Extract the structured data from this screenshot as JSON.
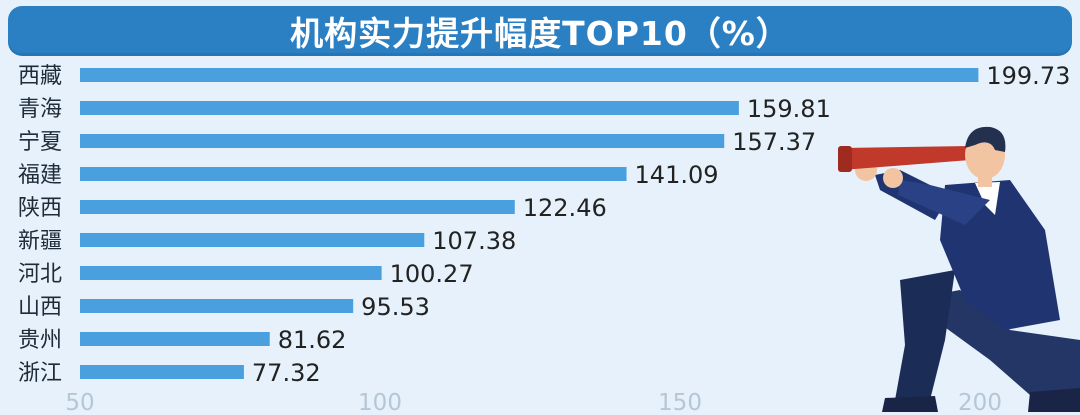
{
  "chart_data": {
    "type": "bar",
    "orientation": "horizontal",
    "title": "机构实力提升幅度TOP10（%）",
    "categories": [
      "西藏",
      "青海",
      "宁夏",
      "福建",
      "陕西",
      "新疆",
      "河北",
      "山西",
      "贵州",
      "浙江"
    ],
    "values": [
      199.73,
      159.81,
      157.37,
      141.09,
      122.46,
      107.38,
      100.27,
      95.53,
      81.62,
      77.32
    ],
    "value_labels": [
      "199.73",
      "159.81",
      "157.37",
      "141.09",
      "122.46",
      "107.38",
      "100.27",
      "95.53",
      "81.62",
      "77.32"
    ],
    "xticks": [
      "50",
      "100",
      "150",
      "200"
    ],
    "xlim": [
      50,
      200
    ],
    "xlabel": "",
    "ylabel": "",
    "grid": false,
    "legend": "none"
  },
  "colors": {
    "background": "#e6f1fb",
    "title_bar": "#2b7fc3",
    "bar": "#4a9fde",
    "tick_text": "#b5c7d6",
    "suit": "#1f3470",
    "telescope": "#c0392b"
  },
  "illustration": "businessman-with-telescope"
}
